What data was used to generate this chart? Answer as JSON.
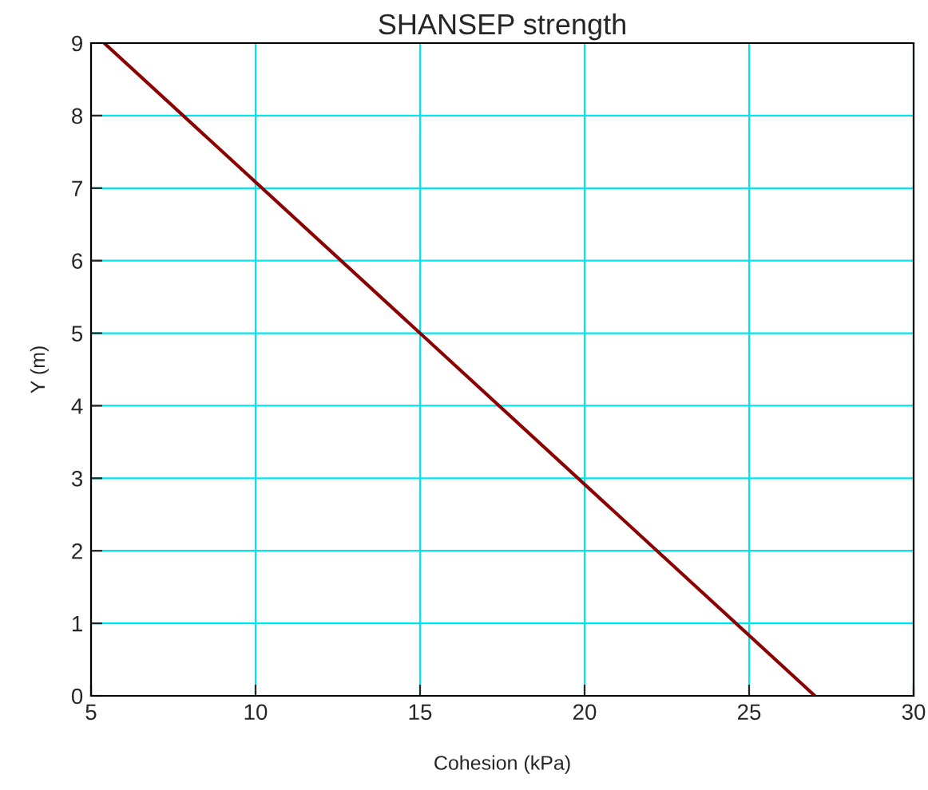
{
  "chart_data": {
    "type": "line",
    "title": "SHANSEP strength",
    "xlabel": "Cohesion (kPa)",
    "ylabel": "Y (m)",
    "series": [
      {
        "color": "#8b0000",
        "x": [
          5.4,
          27
        ],
        "values": [
          9,
          0
        ]
      }
    ],
    "xlim": [
      5,
      30
    ],
    "xticks": [
      5,
      10,
      15,
      20,
      25,
      30
    ],
    "ylim": [
      0,
      9
    ],
    "yticks": [
      0,
      1,
      2,
      3,
      4,
      5,
      6,
      7,
      8,
      9
    ],
    "grid": true,
    "line_style": "solid",
    "marker": "none",
    "legend": false
  }
}
